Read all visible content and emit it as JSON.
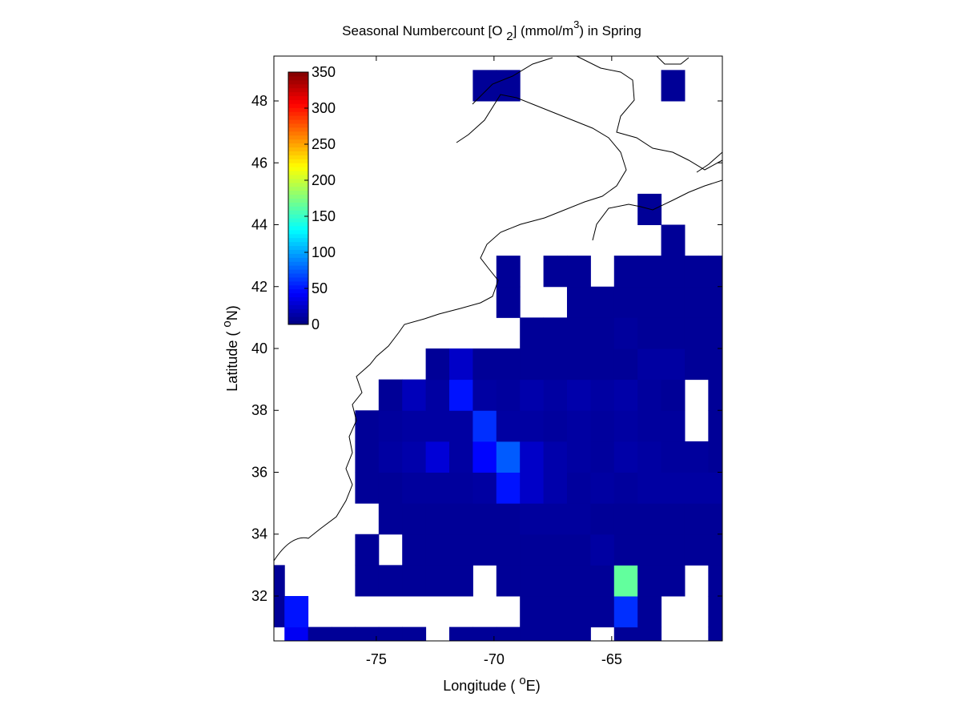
{
  "chart_data": {
    "type": "heatmap",
    "title": [
      "Seasonal Numbercount [O ",
      "2",
      "] (mmol/m",
      "3",
      ") in  Spring"
    ],
    "xlabel": [
      "Longitude ( ",
      "o",
      "E)"
    ],
    "ylabel": [
      "Latitude ( ",
      "o",
      "N)"
    ],
    "xlim": [
      -79.35,
      -60.3
    ],
    "ylim": [
      30.55,
      49.45
    ],
    "xticks": [
      -75,
      -70,
      -65
    ],
    "yticks": [
      32,
      34,
      36,
      38,
      40,
      42,
      44,
      46,
      48
    ],
    "x": [
      -79.4,
      -78.4,
      -77.4,
      -76.4,
      -75.4,
      -74.4,
      -73.4,
      -72.4,
      -71.4,
      -70.4,
      -69.4,
      -68.4,
      -67.4,
      -66.4,
      -65.4,
      -64.4,
      -63.4,
      -62.4,
      -61.4,
      -60.4
    ],
    "y": [
      30.5,
      31.5,
      32.5,
      33.5,
      34.5,
      35.5,
      36.5,
      37.5,
      38.5,
      39.5,
      40.5,
      41.5,
      42.5,
      43.5,
      44.5,
      45.5,
      46.5,
      47.5,
      48.5
    ],
    "values": [
      [
        null,
        40,
        8,
        8,
        8,
        8,
        8,
        null,
        8,
        8,
        8,
        8,
        8,
        8,
        null,
        8,
        8,
        null,
        null,
        8
      ],
      [
        8,
        50,
        null,
        null,
        null,
        null,
        null,
        null,
        null,
        null,
        null,
        8,
        8,
        8,
        8,
        60,
        8,
        null,
        null,
        8
      ],
      [
        8,
        null,
        null,
        null,
        8,
        8,
        8,
        8,
        8,
        null,
        8,
        8,
        8,
        8,
        8,
        165,
        8,
        8,
        null,
        8
      ],
      [
        null,
        null,
        null,
        null,
        8,
        null,
        8,
        8,
        8,
        8,
        8,
        8,
        8,
        8,
        12,
        8,
        8,
        8,
        8,
        8
      ],
      [
        null,
        null,
        null,
        null,
        null,
        8,
        8,
        8,
        8,
        8,
        8,
        10,
        10,
        10,
        8,
        8,
        8,
        8,
        8,
        8
      ],
      [
        null,
        null,
        null,
        null,
        8,
        8,
        10,
        10,
        10,
        12,
        50,
        25,
        15,
        10,
        12,
        10,
        12,
        12,
        12,
        12
      ],
      [
        null,
        null,
        null,
        null,
        8,
        12,
        15,
        30,
        12,
        45,
        75,
        25,
        15,
        12,
        10,
        14,
        12,
        10,
        10,
        8
      ],
      [
        null,
        null,
        null,
        null,
        8,
        10,
        12,
        12,
        12,
        60,
        12,
        12,
        10,
        12,
        10,
        12,
        10,
        10,
        null,
        8
      ],
      [
        null,
        null,
        null,
        null,
        null,
        8,
        20,
        12,
        50,
        12,
        10,
        15,
        12,
        15,
        12,
        14,
        10,
        8,
        null,
        8
      ],
      [
        null,
        null,
        null,
        null,
        null,
        null,
        null,
        8,
        25,
        8,
        8,
        8,
        8,
        8,
        8,
        8,
        12,
        12,
        8,
        8
      ],
      [
        null,
        null,
        null,
        null,
        null,
        null,
        null,
        null,
        null,
        null,
        null,
        8,
        8,
        8,
        8,
        10,
        8,
        8,
        8,
        8
      ],
      [
        null,
        null,
        null,
        null,
        null,
        null,
        null,
        null,
        null,
        null,
        8,
        null,
        null,
        8,
        8,
        8,
        8,
        8,
        8,
        8
      ],
      [
        null,
        null,
        null,
        null,
        null,
        null,
        null,
        null,
        null,
        null,
        8,
        null,
        8,
        8,
        null,
        8,
        8,
        8,
        8,
        8
      ],
      [
        null,
        null,
        null,
        null,
        null,
        null,
        null,
        null,
        null,
        null,
        null,
        null,
        null,
        null,
        null,
        null,
        null,
        8,
        null,
        null
      ],
      [
        null,
        null,
        null,
        null,
        null,
        null,
        null,
        null,
        null,
        null,
        null,
        null,
        null,
        null,
        null,
        null,
        8,
        null,
        null,
        null
      ],
      [
        null,
        null,
        null,
        null,
        null,
        null,
        null,
        null,
        null,
        null,
        null,
        null,
        null,
        null,
        null,
        null,
        null,
        null,
        null,
        null
      ],
      [
        null,
        null,
        null,
        null,
        null,
        null,
        null,
        null,
        null,
        null,
        null,
        null,
        null,
        null,
        null,
        null,
        null,
        null,
        null,
        null
      ],
      [
        null,
        null,
        null,
        null,
        null,
        null,
        null,
        null,
        null,
        null,
        null,
        null,
        null,
        null,
        null,
        null,
        null,
        null,
        null,
        null
      ],
      [
        null,
        null,
        null,
        null,
        null,
        null,
        null,
        null,
        null,
        8,
        8,
        null,
        null,
        null,
        null,
        null,
        null,
        8,
        null,
        null
      ]
    ],
    "colormap": "jet",
    "clim": [
      0,
      350
    ],
    "cticks": [
      0,
      50,
      100,
      150,
      200,
      250,
      300,
      350
    ]
  }
}
